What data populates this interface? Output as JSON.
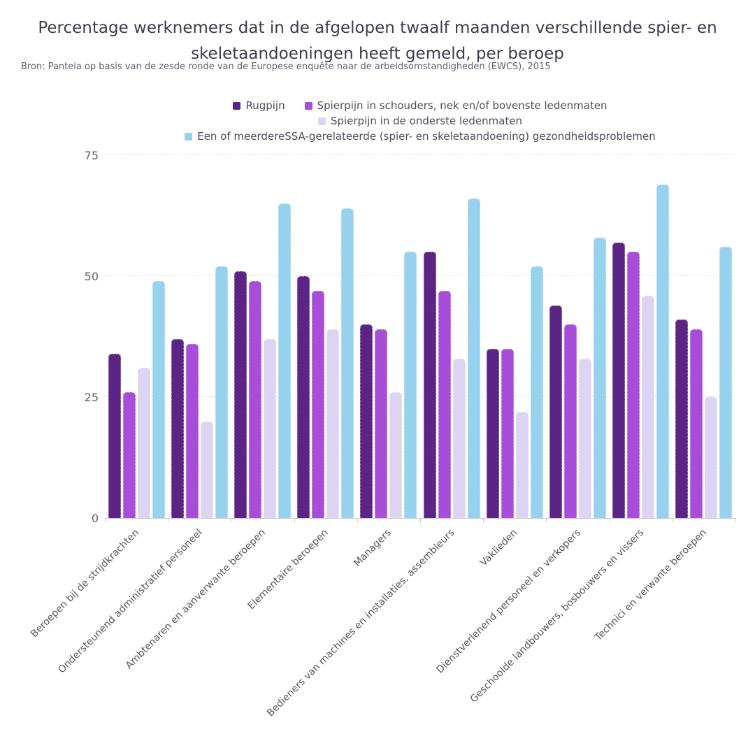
{
  "chart_data": {
    "type": "bar",
    "title": "Percentage werknemers dat in de afgelopen twaalf maanden verschillende spier- en skeletaandoeningen heeft gemeld, per beroep",
    "source": "Bron: Panteia op basis van de zesde ronde van de Europese enquête naar de arbeidsomstandigheden (EWCS), 2015",
    "categories": [
      "Beroepen bij de strijdkrachten",
      "Ondersteunend administratief personeel",
      "Ambtenaren en aanverwante beroepen",
      "Elementaire beroepen",
      "Managers",
      "Bedieners van machines en installaties, assembleurs",
      "Vaklieden",
      "Dienstverlenend personeel en verkopers",
      "Geschoolde landbouwers, bosbouwers en vissers",
      "Technici en verwante beroepen"
    ],
    "series": [
      {
        "name": "Rugpijn",
        "color": "#5C2485",
        "values": [
          34,
          37,
          51,
          50,
          40,
          55,
          35,
          44,
          57,
          41
        ]
      },
      {
        "name": "Spierpijn in schouders, nek en/of bovenste ledenmaten",
        "color": "#A84DD8",
        "values": [
          26,
          36,
          49,
          47,
          39,
          47,
          35,
          40,
          55,
          39
        ]
      },
      {
        "name": "Spierpijn in de onderste ledenmaten",
        "color": "#DDD4F3",
        "values": [
          31,
          20,
          37,
          39,
          26,
          33,
          22,
          33,
          46,
          25
        ]
      },
      {
        "name": "Een of meerdereSSA-gerelateerde (spier- en skeletaandoening) gezondheidsproblemen",
        "color": "#96D1EE",
        "values": [
          49,
          52,
          65,
          64,
          55,
          66,
          52,
          58,
          69,
          56
        ]
      }
    ],
    "y_ticks": [
      0,
      25,
      50,
      75
    ],
    "ylim": [
      0,
      75
    ],
    "grid": true,
    "legend_position": "top-center"
  }
}
